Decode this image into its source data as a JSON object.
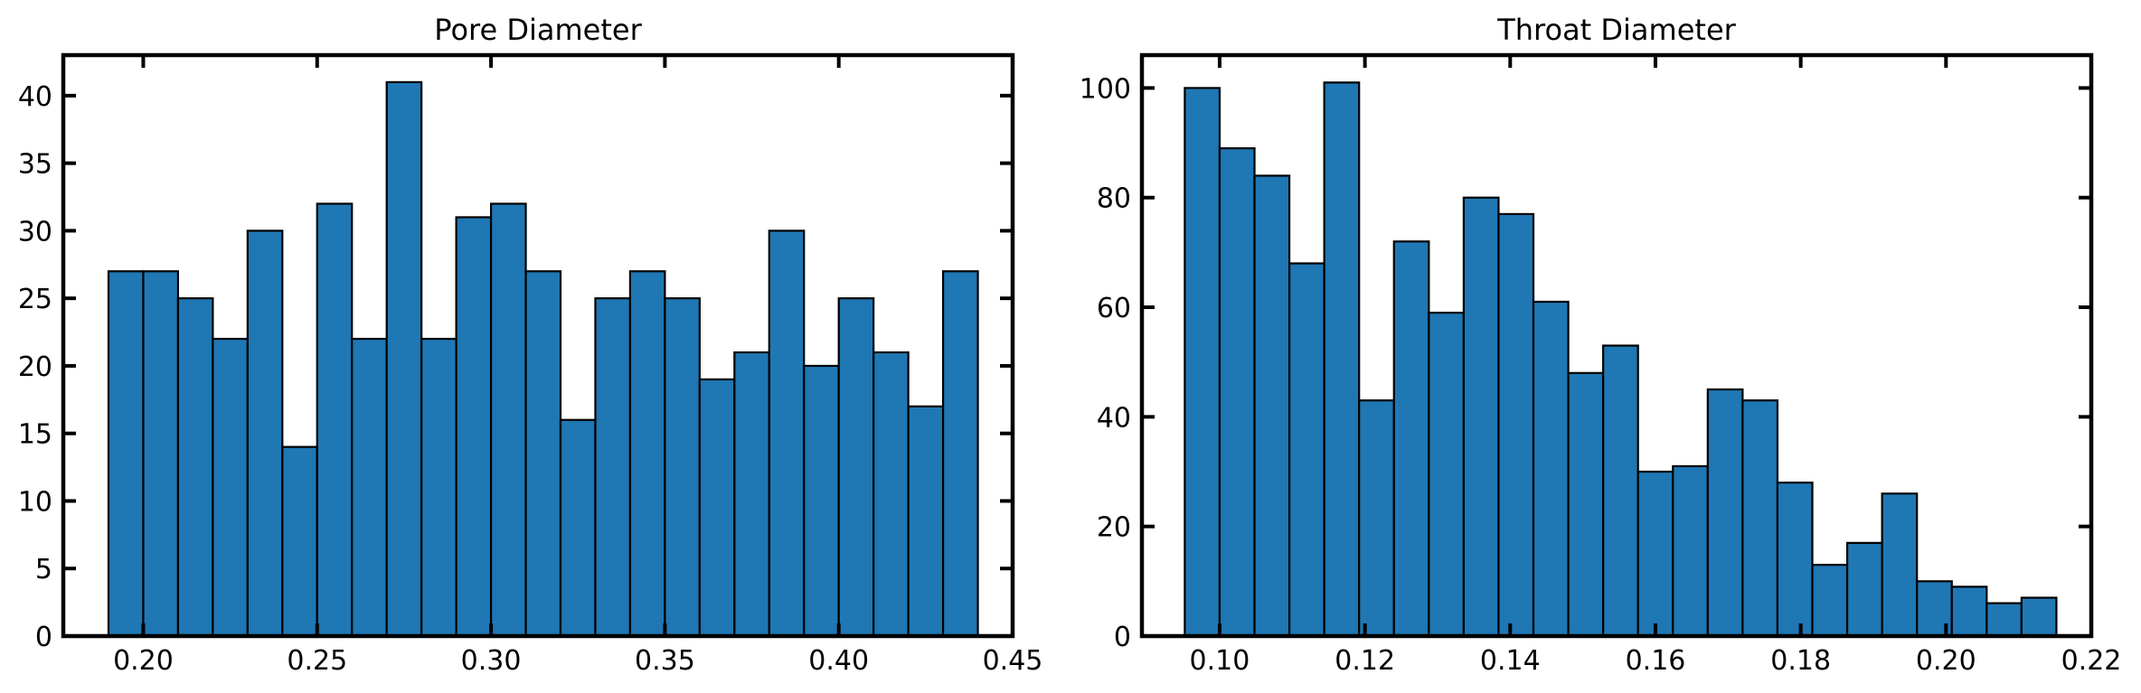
{
  "chart_data": [
    {
      "type": "bar",
      "title": "Pore Diameter",
      "xlabel": "",
      "ylabel": "",
      "bin_width": 0.01,
      "bin_edges": [
        0.19,
        0.2,
        0.21,
        0.22,
        0.23,
        0.24,
        0.25,
        0.26,
        0.27,
        0.28,
        0.29,
        0.3,
        0.31,
        0.32,
        0.33,
        0.34,
        0.35,
        0.36,
        0.37,
        0.38,
        0.39,
        0.4,
        0.41,
        0.42,
        0.43,
        0.44
      ],
      "values": [
        27,
        27,
        25,
        22,
        30,
        14,
        32,
        22,
        41,
        22,
        31,
        32,
        27,
        16,
        25,
        27,
        25,
        19,
        21,
        30,
        20,
        25,
        21,
        17,
        27
      ],
      "xlim": [
        0.177,
        0.45
      ],
      "ylim": [
        0,
        43
      ],
      "xticks": [
        "0.20",
        "0.25",
        "0.30",
        "0.35",
        "0.40",
        "0.45"
      ],
      "yticks": [
        "0",
        "5",
        "10",
        "15",
        "20",
        "25",
        "30",
        "35",
        "40"
      ],
      "bar_color": "#1f77b4",
      "edge_color": "#000000",
      "grid": false
    },
    {
      "type": "bar",
      "title": "Throat Diameter",
      "xlabel": "",
      "ylabel": "",
      "bin_width": 0.0048,
      "bin_edges": [
        0.0952,
        0.1,
        0.1048,
        0.1096,
        0.1144,
        0.1192,
        0.124,
        0.1288,
        0.1336,
        0.1384,
        0.1432,
        0.148,
        0.1528,
        0.1576,
        0.1624,
        0.1672,
        0.172,
        0.1768,
        0.1816,
        0.1864,
        0.1912,
        0.196,
        0.2008,
        0.2056,
        0.2104,
        0.2152
      ],
      "values": [
        100,
        89,
        84,
        68,
        101,
        43,
        72,
        59,
        80,
        77,
        61,
        48,
        53,
        30,
        31,
        45,
        43,
        28,
        13,
        17,
        26,
        10,
        9,
        6,
        7
      ],
      "xlim": [
        0.0893,
        0.22
      ],
      "ylim": [
        0,
        106
      ],
      "xticks": [
        "0.10",
        "0.12",
        "0.14",
        "0.16",
        "0.18",
        "0.20",
        "0.22"
      ],
      "yticks": [
        "0",
        "20",
        "40",
        "60",
        "80",
        "100"
      ],
      "bar_color": "#1f77b4",
      "edge_color": "#000000",
      "grid": false
    }
  ]
}
